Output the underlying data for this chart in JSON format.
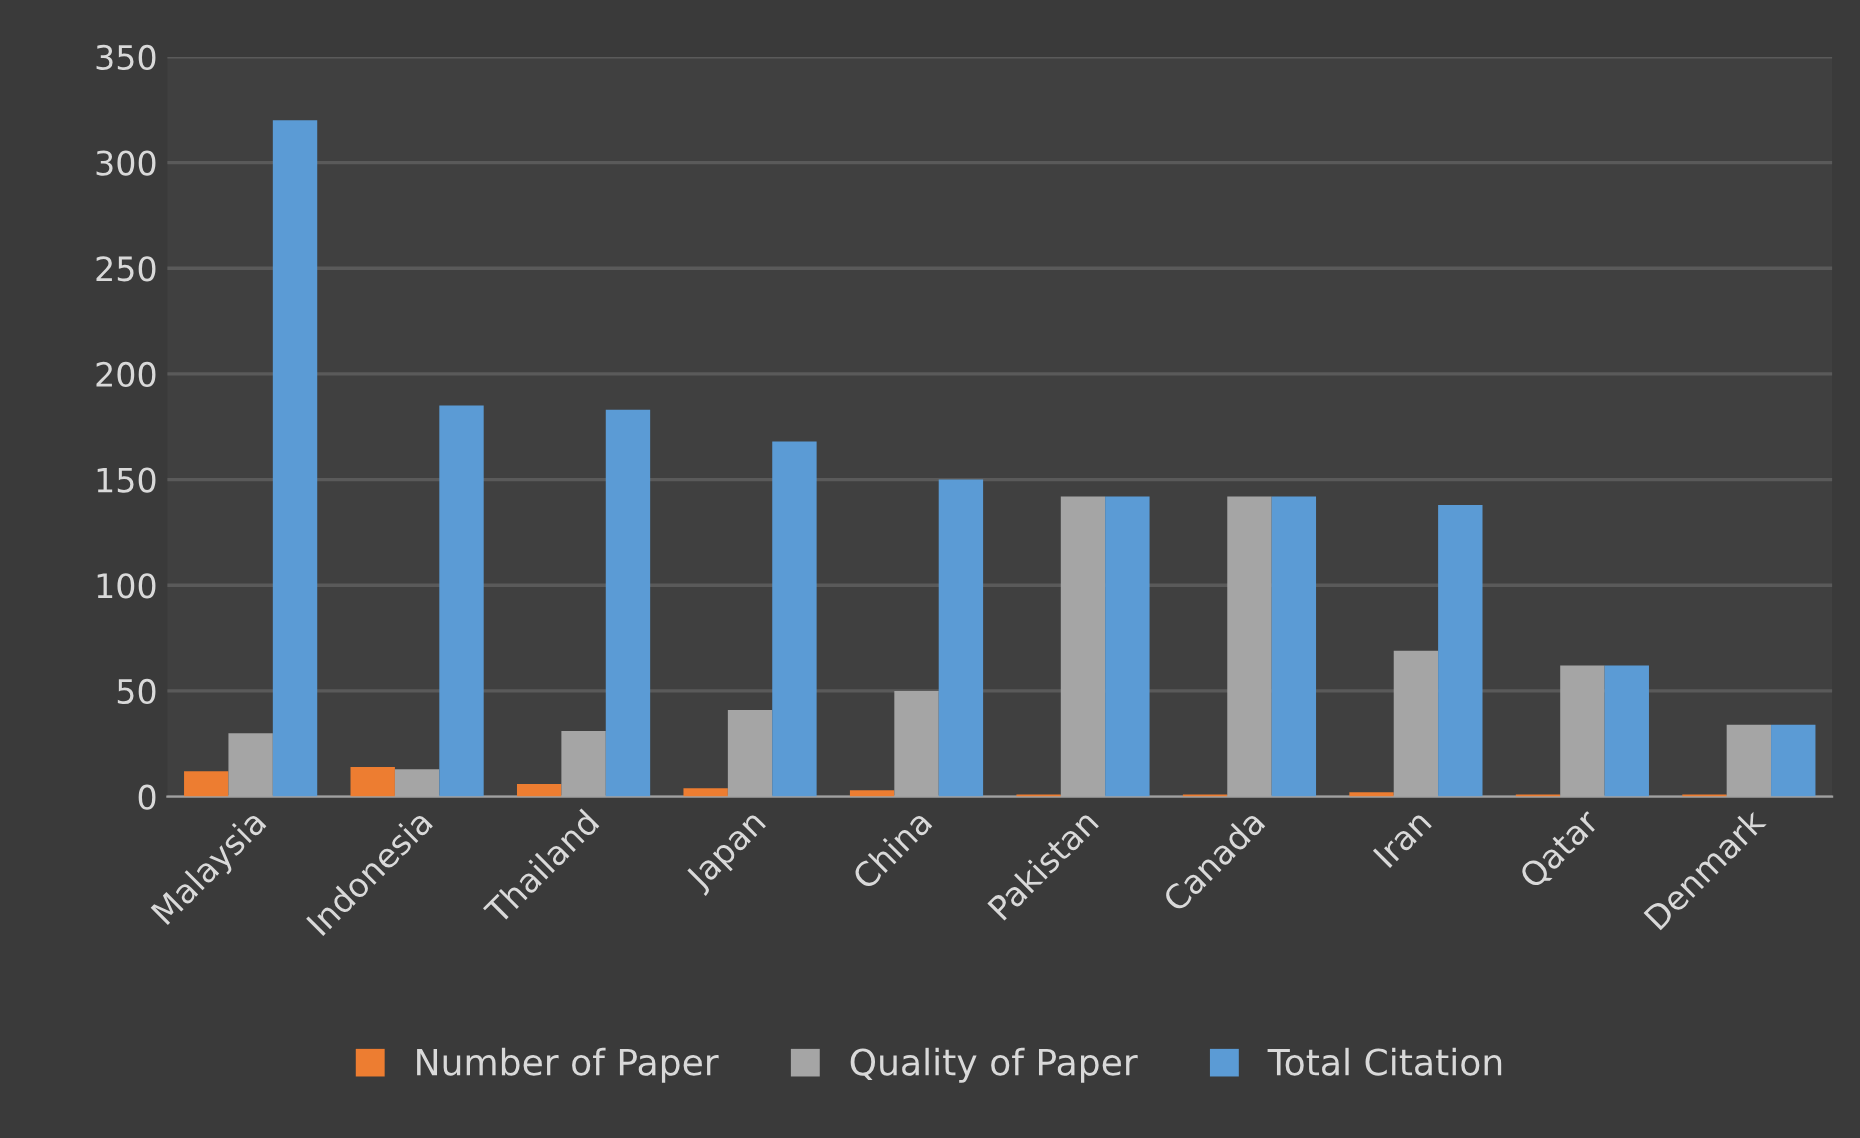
{
  "chart_data": {
    "type": "bar",
    "categories": [
      "Malaysia",
      "Indonesia",
      "Thailand",
      "Japan",
      "China",
      "Pakistan",
      "Canada",
      "Iran",
      "Qatar",
      "Denmark"
    ],
    "series": [
      {
        "name": "Number of Paper",
        "color": "#ed7d31",
        "values": [
          12,
          14,
          6,
          4,
          3,
          1,
          1,
          2,
          1,
          1
        ]
      },
      {
        "name": "Quality of Paper",
        "color": "#a5a5a5",
        "values": [
          30,
          13,
          31,
          41,
          50,
          142,
          142,
          69,
          62,
          34
        ]
      },
      {
        "name": "Total Citation",
        "color": "#5b9bd5",
        "values": [
          320,
          185,
          183,
          168,
          150,
          142,
          142,
          138,
          62,
          34
        ]
      }
    ],
    "ylim": [
      0,
      350
    ],
    "yticks": [
      0,
      50,
      100,
      150,
      200,
      250,
      300,
      350
    ],
    "grid": "y",
    "legend": "bottom"
  }
}
